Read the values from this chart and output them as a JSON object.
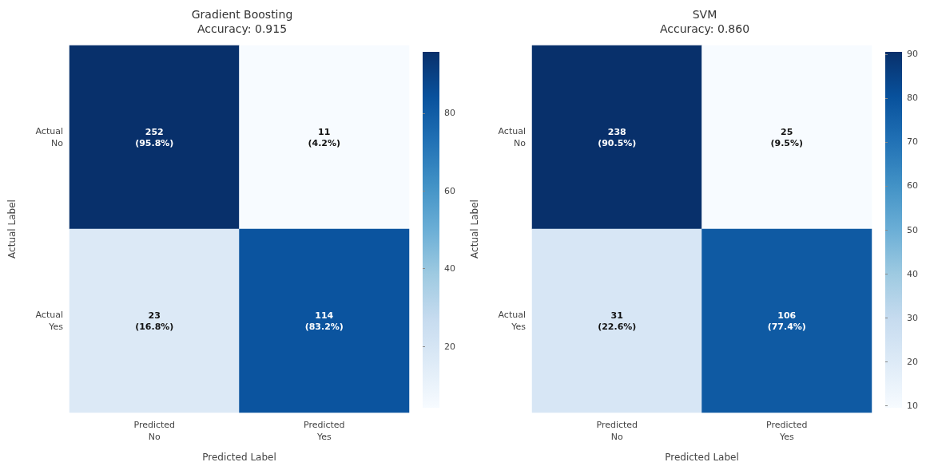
{
  "chart_data": [
    {
      "type": "heatmap",
      "title": "Gradient Boosting",
      "subtitle": "Accuracy: 0.915",
      "xlabel": "Predicted Label",
      "ylabel": "Actual Label",
      "categories": [
        "Predicted\nNo",
        "Predicted\nYes"
      ],
      "y_categories": [
        "Actual\nNo",
        "Actual\nYes"
      ],
      "cells": [
        [
          95.8,
          4.2
        ],
        [
          16.8,
          83.2
        ]
      ],
      "cell_labels": [
        [
          "252\n(95.8%)",
          "11\n(4.2%)"
        ],
        [
          "23\n(16.8%)",
          "114\n(83.2%)"
        ]
      ],
      "clim": [
        4.2,
        95.8
      ],
      "cticks": [
        20,
        40,
        60,
        80
      ]
    },
    {
      "type": "heatmap",
      "title": "SVM",
      "subtitle": "Accuracy: 0.860",
      "xlabel": "Predicted Label",
      "ylabel": "Actual Label",
      "categories": [
        "Predicted\nNo",
        "Predicted\nYes"
      ],
      "y_categories": [
        "Actual\nNo",
        "Actual\nYes"
      ],
      "cells": [
        [
          90.5,
          9.5
        ],
        [
          22.6,
          77.4
        ]
      ],
      "cell_labels": [
        [
          "238\n(90.5%)",
          "25\n(9.5%)"
        ],
        [
          "31\n(22.6%)",
          "106\n(77.4%)"
        ]
      ],
      "clim": [
        9.5,
        90.5
      ],
      "cticks": [
        10,
        20,
        30,
        40,
        50,
        60,
        70,
        80,
        90
      ]
    }
  ]
}
